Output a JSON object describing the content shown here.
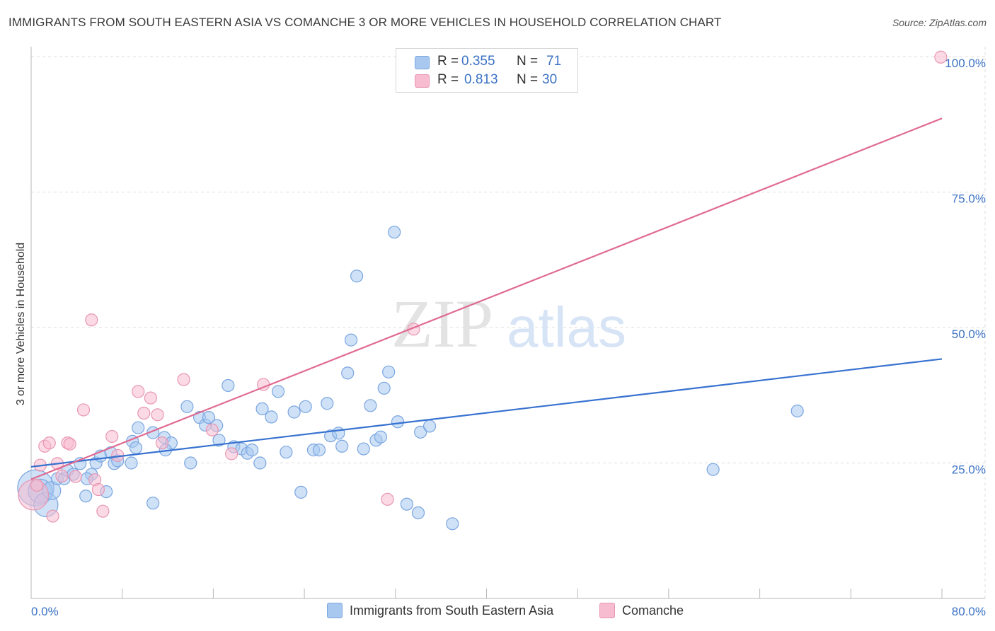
{
  "title": "IMMIGRANTS FROM SOUTH EASTERN ASIA VS COMANCHE 3 OR MORE VEHICLES IN HOUSEHOLD CORRELATION CHART",
  "source": "Source: ZipAtlas.com",
  "watermark": {
    "zip": "ZIP",
    "atlas": "atlas"
  },
  "legend": {
    "r_label": "R =",
    "n_label": "N =",
    "series": [
      {
        "r": "0.355",
        "n": "71",
        "color": "#a8c8f0",
        "border": "#7aa6e0"
      },
      {
        "r": "0.813",
        "n": "30",
        "color": "#f7bcd0",
        "border": "#e896b2"
      }
    ]
  },
  "chart_data": {
    "type": "scatter",
    "title": "IMMIGRANTS FROM SOUTH EASTERN ASIA VS COMANCHE 3 OR MORE VEHICLES IN HOUSEHOLD CORRELATION CHART",
    "xlabel": "",
    "ylabel": "3 or more Vehicles in Household",
    "xlim": [
      0,
      80
    ],
    "ylim": [
      0,
      100
    ],
    "x_tick_labels": [
      "0.0%",
      "80.0%"
    ],
    "y_ticks": [
      25,
      50,
      75,
      100
    ],
    "y_tick_labels": [
      "25.0%",
      "50.0%",
      "75.0%",
      "100.0%"
    ],
    "grid": true,
    "series": [
      {
        "name": "Immigrants from South Eastern Asia",
        "color": "#a8c8f0",
        "stroke": "#7aa6e0",
        "line_color": "#3872d0",
        "trend": [
          [
            0,
            24.3
          ],
          [
            80,
            44.2
          ]
        ],
        "points": [
          [
            0.4,
            20.4,
            3
          ],
          [
            0.8,
            19.8,
            2
          ],
          [
            1.3,
            17.3,
            2
          ],
          [
            1.8,
            19.9,
            1.5
          ],
          [
            2.3,
            22.1,
            1
          ],
          [
            2.9,
            22.1,
            1
          ],
          [
            3.2,
            23.6,
            1
          ],
          [
            3.7,
            22.9,
            1
          ],
          [
            4.3,
            24.9,
            1
          ],
          [
            4.8,
            18.9,
            1
          ],
          [
            5.3,
            22.9,
            1
          ],
          [
            5.7,
            25.0,
            1
          ],
          [
            6.1,
            26.3,
            1
          ],
          [
            6.6,
            19.7,
            1
          ],
          [
            7.0,
            26.9,
            1
          ],
          [
            7.3,
            24.9,
            1
          ],
          [
            7.6,
            25.4,
            1
          ],
          [
            8.8,
            25.0,
            1
          ],
          [
            8.9,
            29.0,
            1
          ],
          [
            9.4,
            31.5,
            1
          ],
          [
            9.2,
            27.8,
            1
          ],
          [
            10.7,
            30.6,
            1
          ],
          [
            11.7,
            29.7,
            1
          ],
          [
            12.3,
            28.7,
            1
          ],
          [
            11.8,
            27.4,
            1
          ],
          [
            13.7,
            35.4,
            1
          ],
          [
            14.0,
            25.0,
            1
          ],
          [
            14.8,
            33.4,
            1
          ],
          [
            15.3,
            32.0,
            1
          ],
          [
            15.6,
            33.4,
            1
          ],
          [
            16.3,
            31.9,
            1
          ],
          [
            16.5,
            29.2,
            1
          ],
          [
            17.3,
            39.3,
            1
          ],
          [
            17.8,
            28.0,
            1
          ],
          [
            18.5,
            27.6,
            1
          ],
          [
            19.0,
            26.8,
            1
          ],
          [
            19.4,
            27.4,
            1
          ],
          [
            20.1,
            25.0,
            1
          ],
          [
            20.3,
            35.0,
            1
          ],
          [
            21.1,
            33.5,
            1
          ],
          [
            21.7,
            38.2,
            1
          ],
          [
            22.4,
            27.0,
            1
          ],
          [
            23.1,
            34.4,
            1
          ],
          [
            23.7,
            19.6,
            1
          ],
          [
            24.1,
            35.4,
            1
          ],
          [
            24.8,
            27.4,
            1
          ],
          [
            25.3,
            27.4,
            1
          ],
          [
            26.0,
            36.0,
            1
          ],
          [
            26.3,
            30.0,
            1
          ],
          [
            27.0,
            30.5,
            1
          ],
          [
            27.3,
            28.1,
            1
          ],
          [
            27.8,
            41.6,
            1
          ],
          [
            28.1,
            47.7,
            1
          ],
          [
            28.6,
            59.5,
            1
          ],
          [
            29.2,
            27.6,
            1
          ],
          [
            29.8,
            35.6,
            1
          ],
          [
            30.3,
            29.2,
            1
          ],
          [
            30.7,
            29.8,
            1
          ],
          [
            31.0,
            38.8,
            1
          ],
          [
            31.4,
            41.8,
            1
          ],
          [
            31.9,
            67.6,
            1
          ],
          [
            32.2,
            32.6,
            1
          ],
          [
            33.0,
            17.4,
            1
          ],
          [
            34.0,
            15.8,
            1
          ],
          [
            34.2,
            30.7,
            1
          ],
          [
            35.0,
            31.8,
            1
          ],
          [
            37.0,
            13.8,
            1
          ],
          [
            59.9,
            23.8,
            1
          ],
          [
            67.3,
            34.6,
            1
          ],
          [
            10.7,
            17.6,
            1
          ],
          [
            4.9,
            22.1,
            1
          ]
        ]
      },
      {
        "name": "Comanche",
        "color": "#f7bcd0",
        "stroke": "#e896b2",
        "line_color": "#e06a92",
        "trend": [
          [
            0,
            22.0
          ],
          [
            80,
            88.6
          ]
        ],
        "points": [
          [
            0.2,
            19.1,
            2.5
          ],
          [
            0.8,
            24.6,
            1
          ],
          [
            1.2,
            28.1,
            1
          ],
          [
            1.6,
            28.7,
            1
          ],
          [
            1.9,
            15.2,
            1
          ],
          [
            2.3,
            24.9,
            1
          ],
          [
            3.2,
            28.7,
            1
          ],
          [
            3.4,
            28.5,
            1
          ],
          [
            3.9,
            22.5,
            1
          ],
          [
            4.6,
            34.8,
            1
          ],
          [
            5.3,
            51.4,
            1
          ],
          [
            5.6,
            21.9,
            1
          ],
          [
            5.9,
            20.1,
            1
          ],
          [
            6.3,
            16.1,
            1
          ],
          [
            7.1,
            29.9,
            1
          ],
          [
            7.6,
            26.4,
            1
          ],
          [
            9.4,
            38.2,
            1
          ],
          [
            9.9,
            34.2,
            1
          ],
          [
            10.5,
            37.0,
            1
          ],
          [
            11.1,
            33.9,
            1
          ],
          [
            11.5,
            28.7,
            1
          ],
          [
            13.4,
            40.4,
            1
          ],
          [
            15.9,
            31.1,
            1
          ],
          [
            17.6,
            26.7,
            1
          ],
          [
            20.4,
            39.5,
            1
          ],
          [
            31.3,
            18.3,
            1
          ],
          [
            33.6,
            49.7,
            1
          ],
          [
            79.9,
            99.9,
            1
          ],
          [
            0.5,
            20.9,
            1
          ],
          [
            2.7,
            22.6,
            1
          ]
        ]
      }
    ]
  }
}
